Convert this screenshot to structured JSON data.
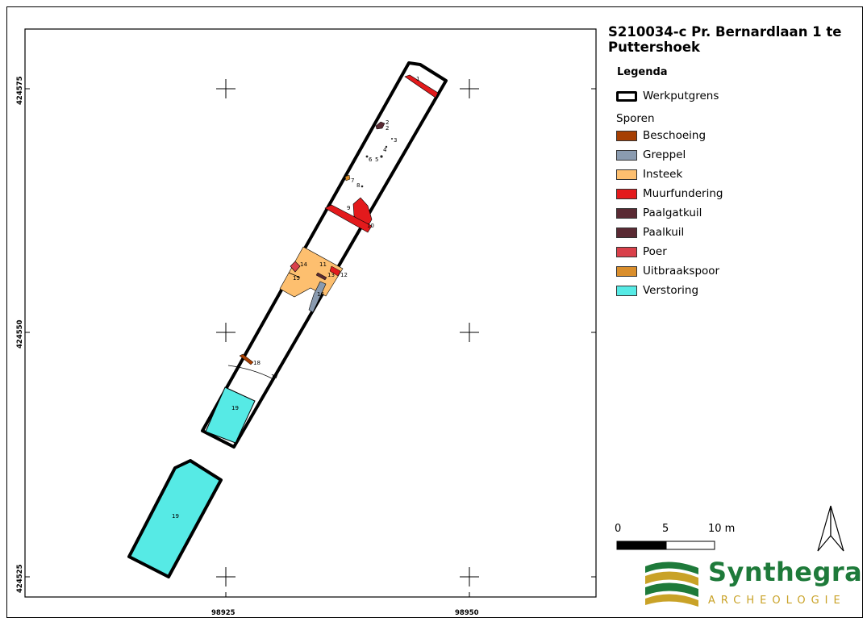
{
  "title": "S210034-c  Pr. Bernardlaan 1 te Puttershoek",
  "legend": {
    "title": "Legenda",
    "boundary_label": "Werkputgrens",
    "group_label": "Sporen",
    "items": [
      {
        "label": "Beschoeing",
        "color": "#a63f03"
      },
      {
        "label": "Greppel",
        "color": "#8a9bb0"
      },
      {
        "label": "Insteek",
        "color": "#fdbf6f"
      },
      {
        "label": "Muurfundering",
        "color": "#e31a1c"
      },
      {
        "label": "Paalgatkuil",
        "color": "#5a2a33"
      },
      {
        "label": "Paalkuil",
        "color": "#5a2a33"
      },
      {
        "label": "Poer",
        "color": "#d9404a"
      },
      {
        "label": "Uitbraakspoor",
        "color": "#d98e2c"
      },
      {
        "label": "Verstoring",
        "color": "#56eae5"
      }
    ]
  },
  "scale": {
    "labels": [
      "0",
      "5",
      "10 m"
    ]
  },
  "grid": {
    "x_labels": [
      "98925",
      "98950"
    ],
    "y_labels": [
      "424575",
      "424550",
      "424525"
    ]
  },
  "feature_numbers": [
    "1",
    "2",
    "2",
    "3",
    "4",
    "5",
    "6",
    "7",
    "8",
    "9",
    "10",
    "11",
    "12",
    "13",
    "14",
    "15",
    "16",
    "17",
    "18",
    "19",
    "19"
  ],
  "logo": {
    "name": "Synthegra",
    "sub": "ARCHEOLOGIE"
  },
  "north_arrow": "north-arrow-icon",
  "colors": {
    "outline": "#000000",
    "verstoring": "#56eae5",
    "insteek": "#fdbf6f",
    "muur": "#e31a1c"
  }
}
